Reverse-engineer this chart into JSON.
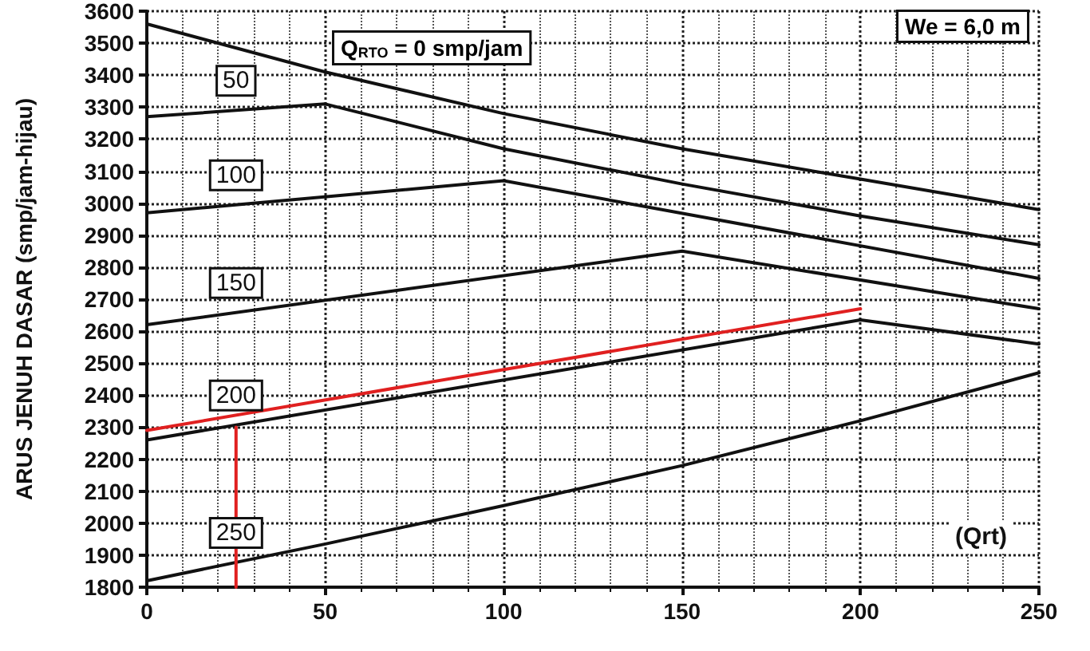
{
  "chart_data": {
    "type": "line",
    "xlabel": "(Qrt)",
    "ylabel": "ARUS JENUH DASAR (smp/jam-hijau)",
    "annotations": [
      "Q$_{RTO}$ = 0 smp/jam",
      "We = 6,0 m"
    ],
    "xlim": [
      0,
      250
    ],
    "xticks": [
      0,
      50,
      100,
      150,
      200,
      250
    ],
    "ylim": [
      1800,
      3600
    ],
    "yticks": [
      1800,
      1900,
      2000,
      2100,
      2200,
      2300,
      2400,
      2500,
      2600,
      2700,
      2800,
      2900,
      3000,
      3100,
      3200,
      3300,
      3400,
      3500,
      3600
    ],
    "grid": true,
    "legend": false,
    "marker": "none",
    "line_style": "solid",
    "series": [
      {
        "color": "#111111",
        "x": [
          0,
          50,
          100,
          150,
          200,
          250
        ],
        "values": [
          3560,
          3410,
          3280,
          3170,
          3075,
          2980
        ]
      },
      {
        "name": "50",
        "color": "#111111",
        "x": [
          0,
          50,
          100,
          150,
          200,
          250
        ],
        "values": [
          3270,
          3310,
          3170,
          3060,
          2960,
          2870
        ]
      },
      {
        "name": "100",
        "color": "#111111",
        "x": [
          0,
          100,
          250
        ],
        "values": [
          2970,
          3070,
          2765
        ]
      },
      {
        "name": "150",
        "color": "#111111",
        "x": [
          0,
          150,
          250
        ],
        "values": [
          2620,
          2850,
          2670
        ]
      },
      {
        "name": "200",
        "color": "#111111",
        "x": [
          0,
          200,
          250
        ],
        "values": [
          2260,
          2635,
          2560
        ]
      },
      {
        "name": "250",
        "color": "#111111",
        "x": [
          0,
          50,
          100,
          150,
          200,
          250
        ],
        "values": [
          1820,
          1935,
          2055,
          2180,
          2320,
          2470
        ]
      },
      {
        "color": "#e02020",
        "x": [
          25,
          25
        ],
        "values": [
          1800,
          2300
        ]
      },
      {
        "color": "#e02020",
        "x": [
          200,
          0
        ],
        "values": [
          2670,
          2290
        ]
      }
    ]
  }
}
